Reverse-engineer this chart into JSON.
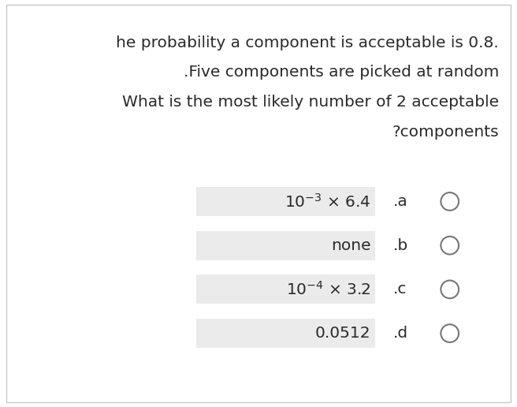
{
  "background_color": "#ffffff",
  "border_color": "#c8c8c8",
  "question_lines": [
    "he probability a component is acceptable is 0.8.",
    ".Five components are picked at random",
    "What is the most likely number of 2 acceptable",
    "?components"
  ],
  "options": [
    {
      "label_math": "$10^{-3}$",
      "label_rest": " × 6.4",
      "letter": ".a",
      "has_math": true
    },
    {
      "label_math": "",
      "label_rest": "none",
      "letter": ".b",
      "has_math": false
    },
    {
      "label_math": "$10^{-4}$",
      "label_rest": " × 3.2",
      "letter": ".c",
      "has_math": true
    },
    {
      "label_math": "",
      "label_rest": "0.0512",
      "letter": ".d",
      "has_math": false
    }
  ],
  "option_box_color": "#ebebeb",
  "text_color": "#2a2a2a",
  "question_fontsize": 14.5,
  "option_fontsize": 14.5,
  "letter_fontsize": 14.5,
  "fig_width": 6.56,
  "fig_height": 5.16
}
